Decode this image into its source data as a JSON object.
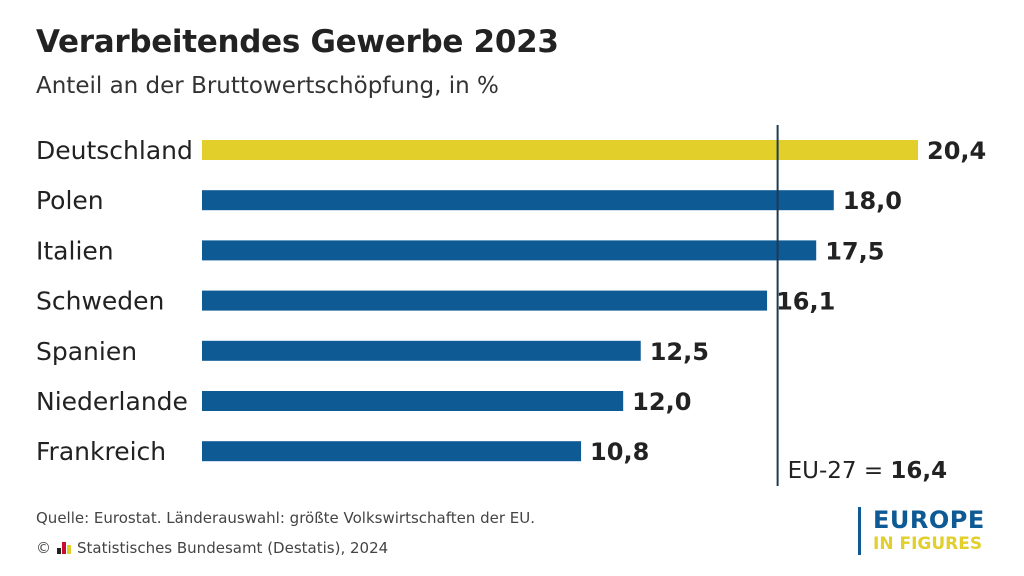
{
  "chart_data": {
    "type": "bar",
    "orientation": "horizontal",
    "title": "Verarbeitendes Gewerbe 2023",
    "subtitle": "Anteil an der Bruttowertschöpfung, in %",
    "categories": [
      "Deutschland",
      "Polen",
      "Italien",
      "Schweden",
      "Spanien",
      "Niederlande",
      "Frankreich"
    ],
    "values": [
      20.4,
      18.0,
      17.5,
      16.1,
      12.5,
      12.0,
      10.8
    ],
    "value_labels": [
      "20,4",
      "18,0",
      "17,5",
      "16,1",
      "12,5",
      "12,0",
      "10,8"
    ],
    "highlight_category": "Deutschland",
    "xlim": [
      0,
      20.4
    ],
    "reference_line": {
      "value": 16.4,
      "label": "EU-27 =",
      "value_label": "16,4"
    },
    "colors": {
      "highlight": "#e2cf2a",
      "default": "#0e5a94",
      "reference": "#1f3a52"
    }
  },
  "footer": {
    "source": "Quelle: Eurostat. Länderauswahl: größte Volkswirtschaften der EU.",
    "copyright_symbol": "©",
    "copyright": "Statistisches Bundesamt (Destatis), 2024"
  },
  "logo": {
    "top": "EUROPE",
    "bottom": "IN FIGURES"
  }
}
